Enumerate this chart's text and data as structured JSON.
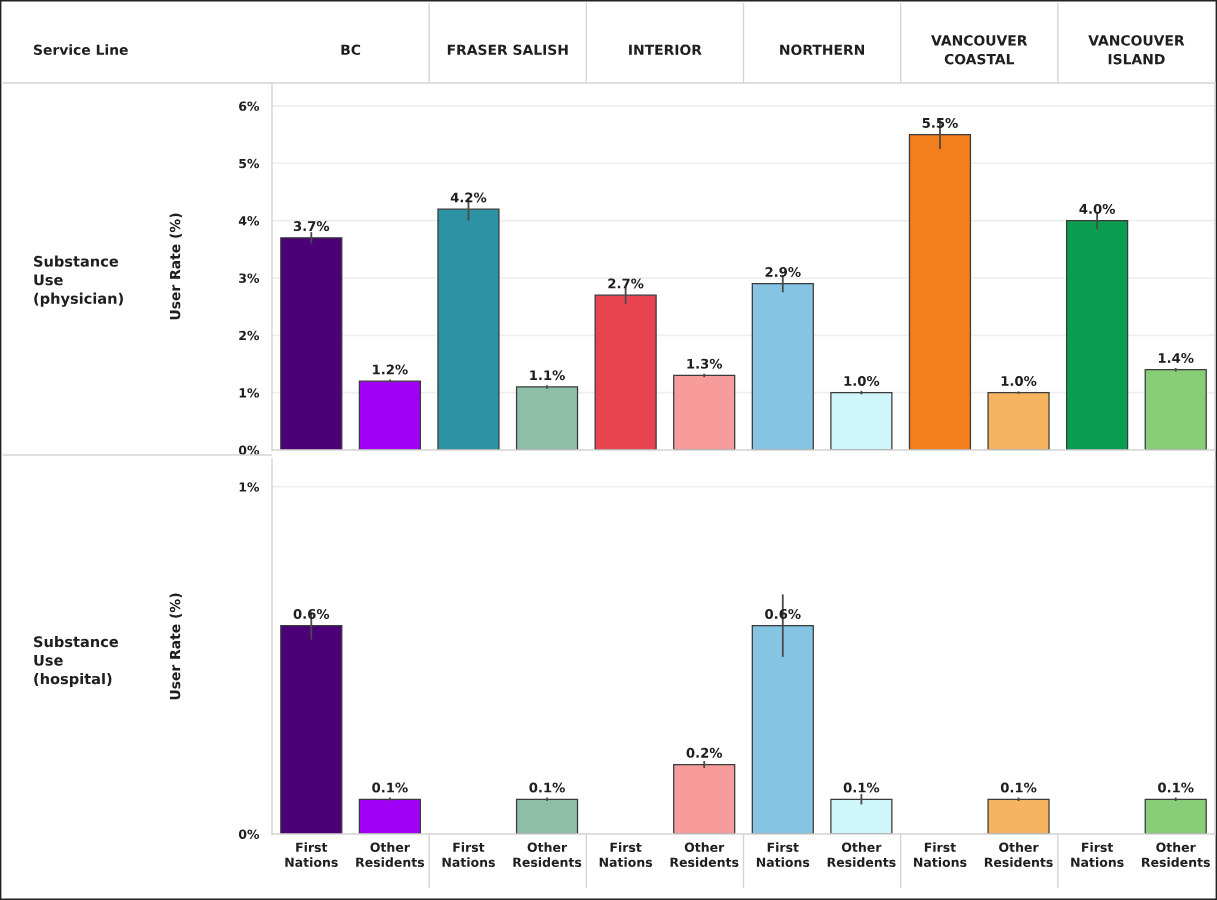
{
  "chart_data": [
    {
      "type": "bar",
      "annotations": [
        "Service Line",
        "Substance Use (physician)"
      ],
      "ylabel": "User Rate (%)",
      "categories": [
        "BC",
        "FRASER SALISH",
        "INTERIOR",
        "NORTHERN",
        "VANCOUVER COASTAL",
        "VANCOUVER ISLAND"
      ],
      "series": [
        {
          "colors": [
            "#4b0078",
            "#2b93a3",
            "#e8444f",
            "#85c5e3",
            "#f27f1b",
            "#0b9d4f"
          ],
          "values": [
            3.7,
            4.2,
            2.7,
            2.9,
            5.5,
            4.0
          ],
          "errors": [
            0.1,
            0.2,
            0.15,
            0.15,
            0.25,
            0.15
          ],
          "value_labels": [
            "3.7%",
            "4.2%",
            "2.7%",
            "2.9%",
            "5.5%",
            "4.0%"
          ]
        },
        {
          "colors": [
            "#a000f5",
            "#8dbfa8",
            "#f89b9b",
            "#cff6fa",
            "#f7b460",
            "#88cd78"
          ],
          "values": [
            1.2,
            1.1,
            1.3,
            1.0,
            1.0,
            1.4
          ],
          "errors": [
            0.03,
            0.03,
            0.03,
            0.03,
            0.02,
            0.03
          ],
          "value_labels": [
            "1.2%",
            "1.1%",
            "1.3%",
            "1.0%",
            "1.0%",
            "1.4%"
          ]
        }
      ],
      "ylim": [
        0,
        6.4
      ],
      "yticks": [
        {
          "value": 0,
          "label": "0%"
        },
        {
          "value": 1,
          "label": "1%"
        },
        {
          "value": 2,
          "label": "2%"
        },
        {
          "value": 3,
          "label": "3%"
        },
        {
          "value": 4,
          "label": "4%"
        },
        {
          "value": 5,
          "label": "5%"
        },
        {
          "value": 6,
          "label": "6%"
        }
      ],
      "grid": "y"
    },
    {
      "type": "bar",
      "annotations": [
        "Substance Use (hospital)"
      ],
      "ylabel": "User Rate (%)",
      "categories": [
        null,
        null,
        null,
        null,
        null,
        null
      ],
      "series": [
        {
          "name": "First Nations",
          "colors": [
            "#4b0078",
            "#2b93a3",
            "#e8444f",
            "#85c5e3",
            "#f27f1b",
            "#0b9d4f"
          ],
          "values": [
            0.6,
            null,
            null,
            0.6,
            null,
            null
          ],
          "errors": [
            0.04,
            null,
            null,
            0.09,
            null,
            null
          ],
          "value_labels": [
            "0.6%",
            null,
            null,
            "0.6%",
            null,
            null
          ]
        },
        {
          "name": "Other Residents",
          "colors": [
            "#a000f5",
            "#8dbfa8",
            "#f89b9b",
            "#cff6fa",
            "#f7b460",
            "#88cd78"
          ],
          "values": [
            0.1,
            0.1,
            0.2,
            0.1,
            0.1,
            0.1
          ],
          "errors": [
            0.005,
            0.005,
            0.01,
            0.015,
            0.005,
            0.005
          ],
          "value_labels": [
            "0.1%",
            "0.1%",
            "0.2%",
            "0.1%",
            "0.1%",
            "0.1%"
          ]
        }
      ],
      "ylim": [
        0,
        1.08
      ],
      "yticks": [
        {
          "value": 0,
          "label": "0%"
        },
        {
          "value": 1,
          "label": "1%"
        }
      ],
      "grid": "y",
      "tick_labels": "y"
    }
  ]
}
